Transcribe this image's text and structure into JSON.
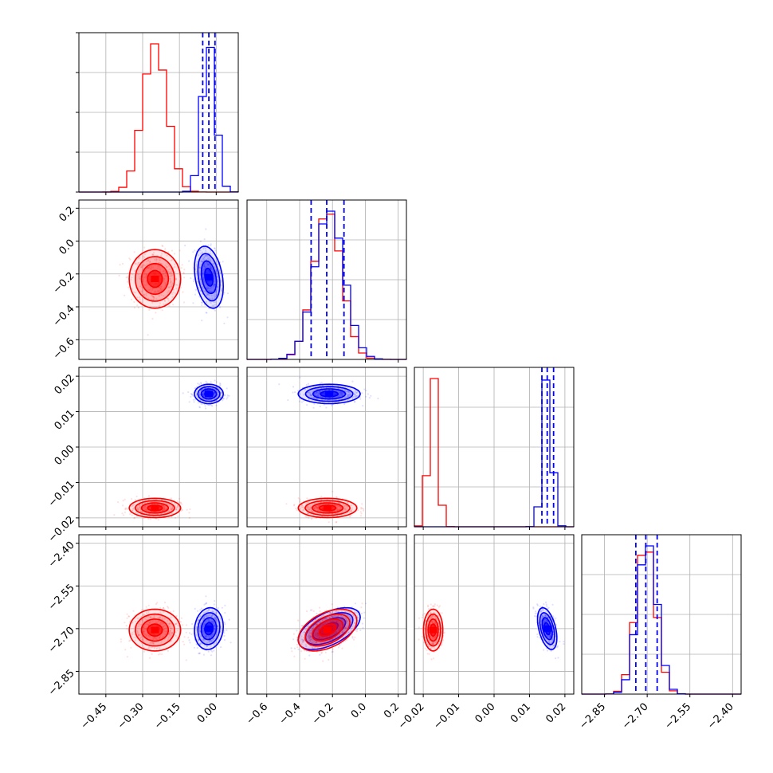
{
  "chart_data": {
    "type": "corner",
    "title": "",
    "grid": true,
    "colors": {
      "series_a": "#0000ff",
      "series_b": "#ff0000"
    },
    "series": [
      {
        "color": "#0000ff",
        "means": [
          -0.03,
          -0.22,
          0.015,
          -2.7
        ],
        "sds": [
          0.028,
          0.09,
          0.0013,
          0.035
        ],
        "corr": {
          "0-1": -0.3,
          "0-2": 0.0,
          "0-3": 0.1,
          "1-2": 0.0,
          "1-3": 0.55,
          "2-3": -0.45
        }
      },
      {
        "color": "#ff0000",
        "means": [
          -0.25,
          -0.23,
          -0.0172,
          -2.705
        ],
        "sds": [
          0.05,
          0.085,
          0.0013,
          0.035
        ],
        "corr": {
          "0-1": 0.0,
          "0-2": 0.0,
          "0-3": 0.0,
          "1-2": 0.0,
          "1-3": 0.45,
          "2-3": 0.0
        }
      }
    ],
    "quantiles": [
      [
        -0.055,
        -0.03,
        -0.005
      ],
      [
        -0.33,
        -0.235,
        -0.13
      ],
      [
        0.0135,
        0.015,
        0.0168
      ],
      [
        -2.74,
        -2.705,
        -2.665
      ]
    ],
    "axes": [
      {
        "range": [
          -0.56,
          0.09
        ],
        "ticks": [
          -0.45,
          -0.3,
          -0.15,
          0.0
        ],
        "tick_labels": [
          "−0.45",
          "−0.30",
          "−0.15",
          "0.00"
        ]
      },
      {
        "range": [
          -0.72,
          0.25
        ],
        "ticks": [
          -0.6,
          -0.4,
          -0.2,
          0.0,
          0.2
        ],
        "tick_labels": [
          "−0.6",
          "−0.4",
          "−0.2",
          "0.0",
          "0.2"
        ]
      },
      {
        "range": [
          -0.0225,
          0.0225
        ],
        "ticks": [
          -0.02,
          -0.01,
          0.0,
          0.01,
          0.02
        ],
        "tick_labels": [
          "−0.02",
          "−0.01",
          "0.00",
          "0.01",
          "0.02"
        ]
      },
      {
        "range": [
          -2.93,
          -2.37
        ],
        "ticks": [
          -2.85,
          -2.7,
          -2.55,
          -2.4
        ],
        "tick_labels": [
          "−2.85",
          "−2.70",
          "−2.55",
          "−2.40"
        ]
      }
    ]
  }
}
